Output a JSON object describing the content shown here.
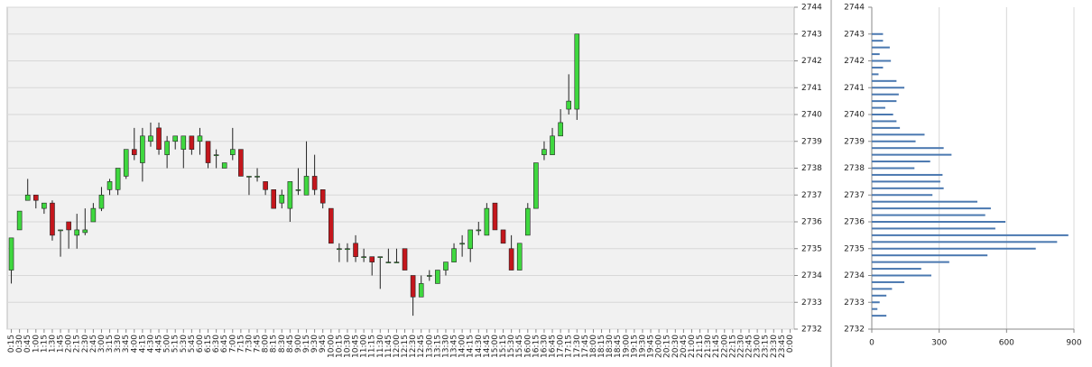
{
  "chart_data": [
    {
      "type": "candlestick",
      "categories": [
        "0:15",
        "0:30",
        "0:45",
        "1:00",
        "1:15",
        "1:30",
        "1:45",
        "2:00",
        "2:15",
        "2:30",
        "2:45",
        "3:00",
        "3:15",
        "3:30",
        "3:45",
        "4:00",
        "4:15",
        "4:30",
        "4:45",
        "5:00",
        "5:15",
        "5:30",
        "5:45",
        "6:00",
        "6:15",
        "6:30",
        "6:45",
        "7:00",
        "7:15",
        "7:30",
        "7:45",
        "8:00",
        "8:15",
        "8:30",
        "8:45",
        "9:00",
        "9:15",
        "9:30",
        "9:45",
        "10:00",
        "10:15",
        "10:30",
        "10:45",
        "11:00",
        "11:15",
        "11:30",
        "11:45",
        "12:00",
        "12:15",
        "12:30",
        "12:45",
        "13:00",
        "13:15",
        "13:30",
        "13:45",
        "14:00",
        "14:15",
        "14:30",
        "14:45",
        "15:00",
        "15:15",
        "15:30",
        "15:45",
        "16:00",
        "16:15",
        "16:30",
        "16:45",
        "17:00",
        "17:15",
        "17:30",
        "17:45",
        "18:00",
        "18:15",
        "18:30",
        "18:45",
        "19:00",
        "19:15",
        "19:30",
        "19:45",
        "20:00",
        "20:15",
        "20:30",
        "20:45",
        "21:00",
        "21:15",
        "21:30",
        "21:45",
        "22:00",
        "22:15",
        "22:30",
        "22:45",
        "23:00",
        "23:15",
        "23:30",
        "23:45",
        "0:00"
      ],
      "open": [
        2734.2,
        2735.7,
        2736.8,
        2737.0,
        2736.5,
        2736.7,
        2735.7,
        2736.0,
        2735.5,
        2735.6,
        2736.0,
        2736.5,
        2737.2,
        2737.2,
        2737.7,
        2738.7,
        2738.2,
        2739.0,
        2739.5,
        2738.5,
        2739.0,
        2738.7,
        2739.2,
        2739.0,
        2739.0,
        2738.5,
        2738.0,
        2738.5,
        2738.7,
        2737.7,
        2737.7,
        2737.5,
        2737.2,
        2736.7,
        2736.5,
        2737.2,
        2737.0,
        2737.7,
        2737.2,
        2736.5,
        2735.0,
        2735.0,
        2735.2,
        2734.7,
        2734.7,
        2734.7,
        2734.5,
        2734.5,
        2735.0,
        2734.0,
        2733.2,
        2734.0,
        2733.7,
        2734.2,
        2734.5,
        2735.2,
        2735.0,
        2735.7,
        2735.5,
        2736.7,
        2735.7,
        2735.0,
        2734.2,
        2735.5,
        2736.5,
        2738.5,
        2738.5,
        2739.2,
        2740.2,
        2740.2,
        null,
        null,
        null,
        null,
        null,
        null,
        null,
        null,
        null,
        null,
        null,
        null,
        null,
        null,
        null,
        null,
        null,
        null,
        null,
        null,
        null,
        null,
        null,
        null,
        null,
        null
      ],
      "high": [
        2735.4,
        2736.4,
        2737.6,
        2737.0,
        2736.7,
        2736.8,
        2735.7,
        2736.0,
        2736.3,
        2736.5,
        2736.7,
        2737.3,
        2737.6,
        2738.0,
        2738.7,
        2739.5,
        2739.5,
        2739.7,
        2739.7,
        2739.2,
        2739.2,
        2739.2,
        2739.2,
        2739.5,
        2739.0,
        2738.7,
        2738.2,
        2739.5,
        2738.7,
        2737.7,
        2738.0,
        2737.5,
        2737.2,
        2737.2,
        2737.5,
        2738.0,
        2739.0,
        2738.5,
        2737.2,
        2736.5,
        2735.2,
        2735.2,
        2735.5,
        2735.0,
        2734.7,
        2734.7,
        2735.0,
        2735.0,
        2735.0,
        2734.0,
        2734.0,
        2734.2,
        2734.2,
        2734.5,
        2735.2,
        2735.5,
        2735.7,
        2736.0,
        2736.7,
        2736.7,
        2735.7,
        2735.5,
        2735.2,
        2736.7,
        2738.2,
        2739.0,
        2739.5,
        2740.2,
        2741.5,
        2743.0,
        null,
        null,
        null,
        null,
        null,
        null,
        null,
        null,
        null,
        null,
        null,
        null,
        null,
        null,
        null,
        null,
        null,
        null,
        null,
        null,
        null,
        null,
        null,
        null,
        null,
        null
      ],
      "low": [
        2733.7,
        2735.7,
        2736.8,
        2736.5,
        2736.3,
        2735.3,
        2734.7,
        2735.0,
        2735.0,
        2735.5,
        2736.0,
        2736.4,
        2737.0,
        2737.0,
        2737.6,
        2738.3,
        2737.5,
        2738.8,
        2738.5,
        2738.0,
        2738.7,
        2738.0,
        2738.5,
        2738.5,
        2738.0,
        2738.0,
        2738.0,
        2738.3,
        2737.7,
        2737.0,
        2737.5,
        2737.0,
        2736.5,
        2736.5,
        2736.0,
        2737.0,
        2737.0,
        2737.0,
        2736.5,
        2735.2,
        2734.5,
        2734.5,
        2734.5,
        2734.5,
        2734.0,
        2733.5,
        2734.5,
        2734.5,
        2734.2,
        2732.5,
        2733.2,
        2733.8,
        2733.7,
        2734.0,
        2734.5,
        2734.7,
        2734.5,
        2735.5,
        2735.5,
        2735.7,
        2735.2,
        2734.2,
        2734.2,
        2735.5,
        2736.5,
        2738.3,
        2738.5,
        2739.2,
        2740.0,
        2739.8,
        null,
        null,
        null,
        null,
        null,
        null,
        null,
        null,
        null,
        null,
        null,
        null,
        null,
        null,
        null,
        null,
        null,
        null,
        null,
        null,
        null,
        null,
        null,
        null,
        null,
        null
      ],
      "close": [
        2735.4,
        2736.4,
        2737.0,
        2736.8,
        2736.7,
        2735.5,
        2735.7,
        2735.7,
        2735.7,
        2735.7,
        2736.5,
        2737.0,
        2737.5,
        2738.0,
        2738.7,
        2738.5,
        2739.2,
        2739.2,
        2738.7,
        2739.0,
        2739.2,
        2739.2,
        2738.7,
        2739.2,
        2738.2,
        2738.5,
        2738.2,
        2738.7,
        2737.7,
        2737.7,
        2737.7,
        2737.2,
        2736.5,
        2737.0,
        2737.5,
        2737.2,
        2737.7,
        2737.2,
        2736.7,
        2735.2,
        2735.0,
        2735.0,
        2734.7,
        2734.7,
        2734.5,
        2734.7,
        2734.5,
        2734.5,
        2734.2,
        2733.2,
        2733.7,
        2734.0,
        2734.2,
        2734.5,
        2735.0,
        2735.2,
        2735.7,
        2735.7,
        2736.5,
        2735.7,
        2735.2,
        2734.2,
        2735.2,
        2736.5,
        2738.2,
        2738.7,
        2739.2,
        2739.7,
        2740.5,
        2743.0,
        null,
        null,
        null,
        null,
        null,
        null,
        null,
        null,
        null,
        null,
        null,
        null,
        null,
        null,
        null,
        null,
        null,
        null,
        null,
        null,
        null,
        null,
        null,
        null,
        null,
        null
      ],
      "up_color": "#3fd83f",
      "down_color": "#c4161c",
      "ylim": [
        2732,
        2744
      ],
      "yticks": [
        2732,
        2733,
        2734,
        2735,
        2736,
        2737,
        2738,
        2739,
        2740,
        2741,
        2742,
        2743,
        2744
      ],
      "grid": true
    },
    {
      "type": "profile",
      "y": [
        2743,
        2742.75,
        2742.5,
        2742.25,
        2742,
        2741.75,
        2741.5,
        2741.25,
        2741,
        2740.75,
        2740.5,
        2740.25,
        2740,
        2739.75,
        2739.5,
        2739.25,
        2739,
        2738.75,
        2738.5,
        2738.25,
        2738,
        2737.75,
        2737.5,
        2737.25,
        2737,
        2736.75,
        2736.5,
        2736.25,
        2736,
        2735.75,
        2735.5,
        2735.25,
        2735,
        2734.75,
        2734.5,
        2734.25,
        2734,
        2733.75,
        2733.5,
        2733.25,
        2733,
        2732.75,
        2732.5
      ],
      "values": [
        50,
        50,
        80,
        35,
        85,
        50,
        30,
        110,
        145,
        120,
        110,
        60,
        95,
        110,
        125,
        235,
        195,
        320,
        355,
        260,
        190,
        315,
        305,
        320,
        270,
        470,
        530,
        505,
        595,
        550,
        875,
        825,
        730,
        515,
        345,
        220,
        265,
        145,
        90,
        65,
        35,
        25,
        65
      ],
      "color": "#4a78b0",
      "ylim": [
        2732,
        2744
      ],
      "yticks": [
        2732,
        2733,
        2734,
        2735,
        2736,
        2737,
        2738,
        2739,
        2740,
        2741,
        2742,
        2743,
        2744
      ],
      "xlim": [
        0,
        900
      ],
      "xticks": [
        0,
        300,
        600,
        900
      ],
      "grid": true
    }
  ]
}
